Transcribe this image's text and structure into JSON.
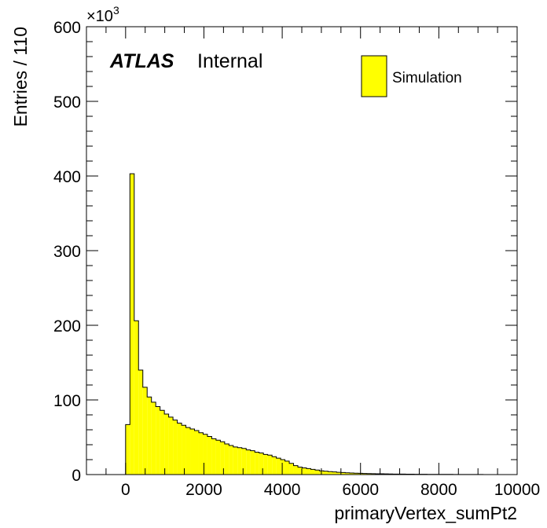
{
  "chart_data": {
    "type": "bar",
    "bin_width": 110,
    "xlim": [
      -1000,
      10000
    ],
    "ylim": [
      0,
      600
    ],
    "y_multiplier": "×10",
    "y_multiplier_exp": "3",
    "xlabel": "primaryVertex_sumPt2",
    "ylabel": "Entries / 110",
    "x_tick_labels": [
      "0",
      "2000",
      "4000",
      "6000",
      "8000",
      "10000"
    ],
    "y_tick_labels": [
      "0",
      "100",
      "200",
      "300",
      "400",
      "500",
      "600"
    ],
    "atlas_label": "ATLAS",
    "atlas_sublabel": "Internal",
    "legend_position": "top-right",
    "series": [
      {
        "name": "Simulation",
        "color": "#ffff00",
        "bin_start": 0,
        "values": [
          67,
          403,
          206,
          140,
          117,
          104,
          97,
          91,
          86,
          81,
          77,
          73,
          69,
          66,
          63,
          61,
          59,
          56,
          54,
          51,
          48,
          46,
          44,
          41,
          39,
          37,
          36,
          35,
          33,
          32,
          30,
          29,
          27,
          26,
          24,
          22,
          20,
          18,
          15,
          12,
          10,
          9,
          8,
          7,
          6,
          5,
          4.5,
          4,
          3.5,
          3,
          2.7,
          2.4,
          2.1,
          1.9,
          1.7,
          1.5,
          1.3,
          1.2,
          1.1,
          1.0,
          0.9,
          0.8,
          0.7,
          0.65,
          0.6,
          0.55,
          0.5,
          0.45,
          0.4,
          0.35,
          0.3,
          0.3,
          0.25,
          0.25,
          0.2,
          0.2,
          0.15,
          0.15,
          0.1,
          0.1,
          0.1,
          0.1,
          0.1,
          0.05,
          0.05,
          0.05,
          0.05,
          0.05,
          0.05,
          0.05
        ]
      }
    ]
  }
}
